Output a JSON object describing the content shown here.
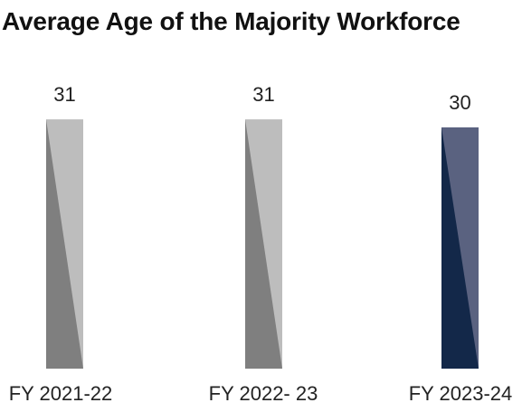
{
  "chart_data": {
    "type": "bar",
    "title": "Average Age of the Majority Workforce",
    "categories": [
      "FY 2021-22",
      "FY 2022- 23",
      "FY 2023-24"
    ],
    "values": [
      31,
      31,
      30
    ],
    "xlabel": "",
    "ylabel": "",
    "grid": false,
    "legend": "none",
    "colors": {
      "past_light": "#bdbdbd",
      "past_dark": "#7f7f7f",
      "current_light": "#5a6280",
      "current_dark": "#132849"
    }
  }
}
